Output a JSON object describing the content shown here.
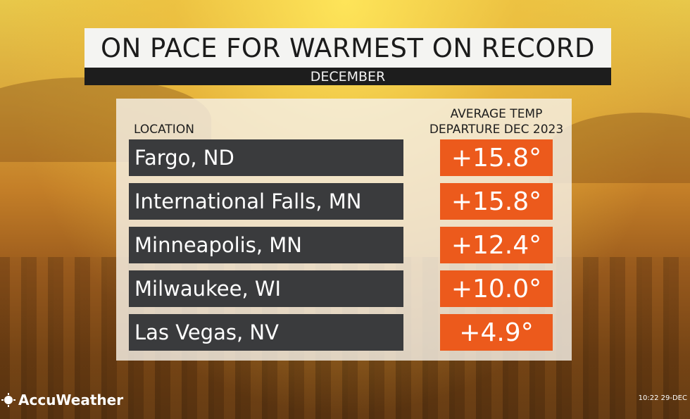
{
  "header": {
    "title": "ON PACE FOR WARMEST ON RECORD",
    "subtitle": "DECEMBER"
  },
  "table": {
    "location_header": "LOCATION",
    "value_header": [
      "AVERAGE TEMP",
      "DEPARTURE DEC 2023"
    ],
    "rows": [
      [
        "Fargo, ND",
        "+15.8°"
      ],
      [
        "International Falls, MN",
        "+15.8°"
      ],
      [
        "Minneapolis, MN",
        "+12.4°"
      ],
      [
        "Milwaukee, WI",
        "+10.0°"
      ],
      [
        "Las Vegas, NV",
        "+4.9°"
      ]
    ]
  },
  "footer": {
    "logo": "AccuWeather",
    "timestamp": "10:22 29-DEC"
  }
}
